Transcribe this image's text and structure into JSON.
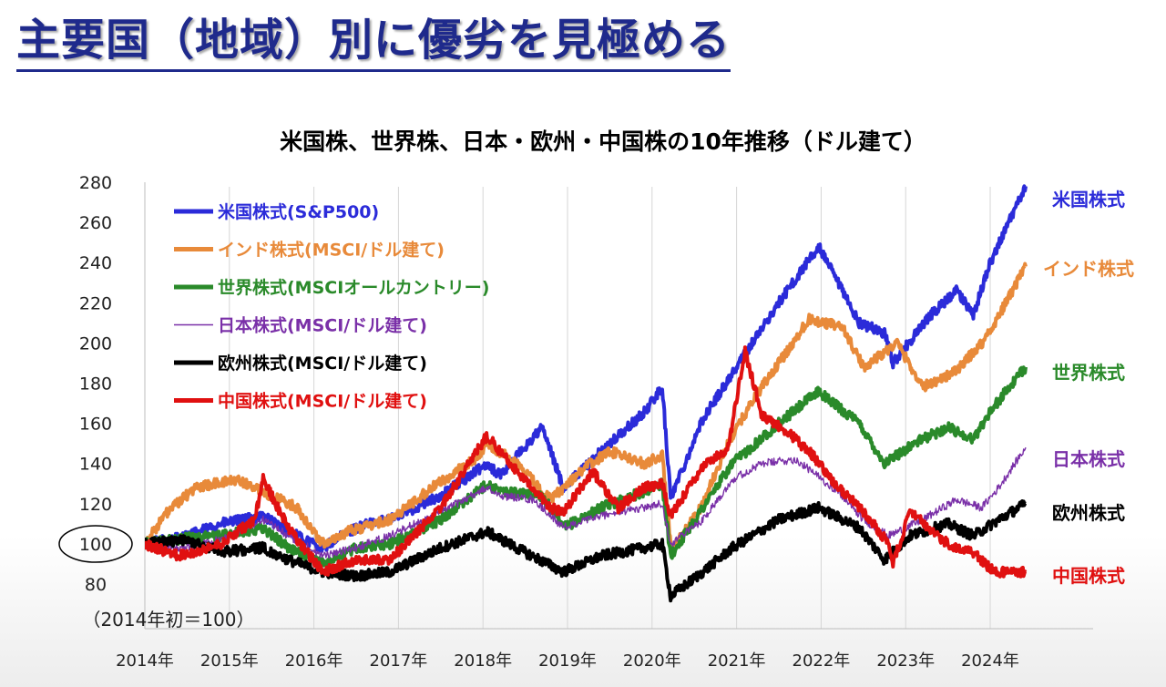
{
  "slide": {
    "title": "主要国（地域）別に優劣を見極める"
  },
  "chart_data": {
    "type": "line",
    "title": "米国株、世界株、日本・欧州・中国株の10年推移（ドル建て）",
    "base_note": "（2014年初＝100）",
    "xlim": [
      2014.0,
      2024.42
    ],
    "ylim": [
      80,
      280
    ],
    "y_ticks": [
      280,
      260,
      240,
      220,
      200,
      180,
      160,
      140,
      120,
      100,
      80
    ],
    "x_ticks": [
      {
        "value": 2014,
        "label": "2014年"
      },
      {
        "value": 2015,
        "label": "2015年"
      },
      {
        "value": 2016,
        "label": "2016年"
      },
      {
        "value": 2017,
        "label": "2017年"
      },
      {
        "value": 2018,
        "label": "2018年"
      },
      {
        "value": 2019,
        "label": "2019年"
      },
      {
        "value": 2020,
        "label": "2020年"
      },
      {
        "value": 2021,
        "label": "2021年"
      },
      {
        "value": 2022,
        "label": "2022年"
      },
      {
        "value": 2023,
        "label": "2023年"
      },
      {
        "value": 2024,
        "label": "2024年"
      }
    ],
    "grid": "vertical",
    "legend_position": "top-left",
    "highlight": {
      "value": "100",
      "shape": "ellipse"
    },
    "series": [
      {
        "name": "米国株式(S&P500)",
        "end_label": "米国株式",
        "color": "#2b2bd9",
        "points": [
          [
            2014.0,
            100
          ],
          [
            2014.5,
            104
          ],
          [
            2014.9,
            110
          ],
          [
            2015.4,
            114
          ],
          [
            2015.7,
            106
          ],
          [
            2016.1,
            98
          ],
          [
            2016.5,
            108
          ],
          [
            2017.0,
            114
          ],
          [
            2017.5,
            124
          ],
          [
            2018.05,
            140
          ],
          [
            2018.2,
            134
          ],
          [
            2018.7,
            158
          ],
          [
            2018.95,
            128
          ],
          [
            2019.4,
            146
          ],
          [
            2019.9,
            165
          ],
          [
            2020.12,
            178
          ],
          [
            2020.22,
            123
          ],
          [
            2020.6,
            162
          ],
          [
            2020.95,
            185
          ],
          [
            2021.5,
            220
          ],
          [
            2021.97,
            248
          ],
          [
            2022.45,
            210
          ],
          [
            2022.75,
            205
          ],
          [
            2022.85,
            190
          ],
          [
            2023.3,
            214
          ],
          [
            2023.6,
            226
          ],
          [
            2023.8,
            214
          ],
          [
            2024.0,
            240
          ],
          [
            2024.42,
            278
          ]
        ]
      },
      {
        "name": "インド株式(MSCI/ドル建て)",
        "end_label": "インド株式",
        "color": "#e88a3a",
        "points": [
          [
            2014.0,
            100
          ],
          [
            2014.25,
            115
          ],
          [
            2014.6,
            128
          ],
          [
            2015.1,
            132
          ],
          [
            2015.5,
            124
          ],
          [
            2015.8,
            118
          ],
          [
            2016.1,
            100
          ],
          [
            2016.4,
            106
          ],
          [
            2016.9,
            112
          ],
          [
            2017.4,
            128
          ],
          [
            2017.9,
            142
          ],
          [
            2018.05,
            150
          ],
          [
            2018.4,
            140
          ],
          [
            2018.8,
            122
          ],
          [
            2019.2,
            138
          ],
          [
            2019.5,
            146
          ],
          [
            2019.9,
            140
          ],
          [
            2020.12,
            144
          ],
          [
            2020.23,
            96
          ],
          [
            2020.6,
            120
          ],
          [
            2020.9,
            150
          ],
          [
            2021.2,
            172
          ],
          [
            2021.7,
            202
          ],
          [
            2021.85,
            212
          ],
          [
            2022.25,
            208
          ],
          [
            2022.5,
            188
          ],
          [
            2022.9,
            200
          ],
          [
            2023.2,
            178
          ],
          [
            2023.6,
            186
          ],
          [
            2023.9,
            200
          ],
          [
            2024.0,
            206
          ],
          [
            2024.42,
            238
          ]
        ]
      },
      {
        "name": "世界株式(MSCIオールカントリー)",
        "end_label": "世界株式",
        "color": "#2a8a2a",
        "points": [
          [
            2014.0,
            100
          ],
          [
            2014.5,
            103
          ],
          [
            2014.9,
            104
          ],
          [
            2015.4,
            108
          ],
          [
            2015.7,
            98
          ],
          [
            2016.1,
            90
          ],
          [
            2016.5,
            98
          ],
          [
            2016.9,
            100
          ],
          [
            2017.5,
            112
          ],
          [
            2018.05,
            130
          ],
          [
            2018.2,
            126
          ],
          [
            2018.7,
            124
          ],
          [
            2018.95,
            108
          ],
          [
            2019.4,
            118
          ],
          [
            2019.9,
            126
          ],
          [
            2020.12,
            130
          ],
          [
            2020.22,
            94
          ],
          [
            2020.6,
            118
          ],
          [
            2020.95,
            140
          ],
          [
            2021.5,
            160
          ],
          [
            2021.97,
            176
          ],
          [
            2022.45,
            160
          ],
          [
            2022.75,
            140
          ],
          [
            2023.1,
            150
          ],
          [
            2023.5,
            158
          ],
          [
            2023.8,
            152
          ],
          [
            2024.0,
            166
          ],
          [
            2024.42,
            188
          ]
        ]
      },
      {
        "name": "日本株式(MSCI/ドル建て)",
        "end_label": "日本株式",
        "color": "#7a30a8",
        "thin": true,
        "points": [
          [
            2014.0,
            100
          ],
          [
            2014.4,
            98
          ],
          [
            2014.9,
            102
          ],
          [
            2015.4,
            112
          ],
          [
            2015.7,
            104
          ],
          [
            2016.1,
            94
          ],
          [
            2016.5,
            98
          ],
          [
            2016.9,
            104
          ],
          [
            2017.5,
            116
          ],
          [
            2018.05,
            128
          ],
          [
            2018.2,
            124
          ],
          [
            2018.6,
            122
          ],
          [
            2018.95,
            108
          ],
          [
            2019.4,
            114
          ],
          [
            2019.9,
            118
          ],
          [
            2020.12,
            120
          ],
          [
            2020.22,
            100
          ],
          [
            2020.6,
            112
          ],
          [
            2020.95,
            132
          ],
          [
            2021.3,
            140
          ],
          [
            2021.7,
            142
          ],
          [
            2022.2,
            126
          ],
          [
            2022.5,
            112
          ],
          [
            2022.8,
            104
          ],
          [
            2023.2,
            112
          ],
          [
            2023.6,
            122
          ],
          [
            2023.9,
            118
          ],
          [
            2024.1,
            128
          ],
          [
            2024.42,
            148
          ]
        ]
      },
      {
        "name": "欧州株式(MSCI/ドル建て)",
        "end_label": "欧州株式",
        "color": "#000000",
        "points": [
          [
            2014.0,
            100
          ],
          [
            2014.5,
            102
          ],
          [
            2014.9,
            96
          ],
          [
            2015.4,
            98
          ],
          [
            2015.7,
            92
          ],
          [
            2016.1,
            86
          ],
          [
            2016.5,
            84
          ],
          [
            2016.9,
            86
          ],
          [
            2017.5,
            98
          ],
          [
            2018.05,
            106
          ],
          [
            2018.4,
            98
          ],
          [
            2018.95,
            86
          ],
          [
            2019.4,
            94
          ],
          [
            2019.9,
            98
          ],
          [
            2020.12,
            100
          ],
          [
            2020.22,
            74
          ],
          [
            2020.6,
            86
          ],
          [
            2020.95,
            98
          ],
          [
            2021.5,
            112
          ],
          [
            2021.97,
            118
          ],
          [
            2022.45,
            108
          ],
          [
            2022.75,
            92
          ],
          [
            2023.05,
            104
          ],
          [
            2023.5,
            110
          ],
          [
            2023.8,
            104
          ],
          [
            2024.1,
            112
          ],
          [
            2024.42,
            120
          ]
        ]
      },
      {
        "name": "中国株式(MSCI/ドル建て)",
        "end_label": "中国株式",
        "color": "#e01010",
        "points": [
          [
            2014.0,
            100
          ],
          [
            2014.4,
            94
          ],
          [
            2014.9,
            100
          ],
          [
            2015.3,
            112
          ],
          [
            2015.4,
            132
          ],
          [
            2015.7,
            108
          ],
          [
            2016.1,
            86
          ],
          [
            2016.5,
            92
          ],
          [
            2016.9,
            92
          ],
          [
            2017.5,
            118
          ],
          [
            2018.05,
            154
          ],
          [
            2018.4,
            136
          ],
          [
            2018.8,
            118
          ],
          [
            2018.95,
            116
          ],
          [
            2019.3,
            136
          ],
          [
            2019.6,
            118
          ],
          [
            2019.9,
            128
          ],
          [
            2020.12,
            130
          ],
          [
            2020.22,
            114
          ],
          [
            2020.6,
            138
          ],
          [
            2020.9,
            148
          ],
          [
            2021.1,
            196
          ],
          [
            2021.3,
            164
          ],
          [
            2021.6,
            156
          ],
          [
            2021.9,
            144
          ],
          [
            2022.2,
            128
          ],
          [
            2022.5,
            116
          ],
          [
            2022.8,
            100
          ],
          [
            2022.85,
            90
          ],
          [
            2023.05,
            116
          ],
          [
            2023.5,
            100
          ],
          [
            2023.8,
            96
          ],
          [
            2024.05,
            86
          ],
          [
            2024.42,
            86
          ]
        ]
      }
    ]
  }
}
